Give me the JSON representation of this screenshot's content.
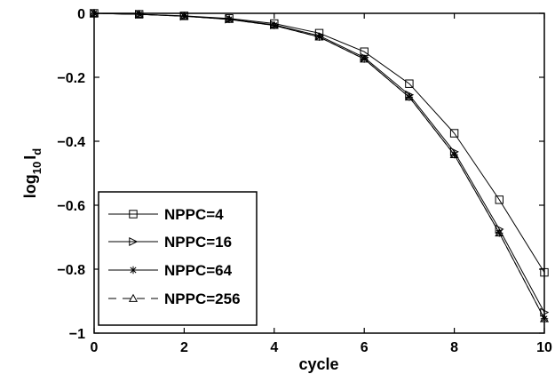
{
  "chart_data": {
    "type": "line",
    "title": "",
    "xlabel": "cycle",
    "ylabel_base": "log",
    "ylabel_sub": "10",
    "ylabel_rest": "I",
    "ylabel_rest_sub": "d",
    "xlim": [
      0,
      10
    ],
    "ylim": [
      -1,
      0
    ],
    "xticks": [
      0,
      2,
      4,
      6,
      8,
      10
    ],
    "xtick_labels": [
      "0",
      "2",
      "4",
      "6",
      "8",
      "10"
    ],
    "yticks": [
      0,
      -0.2,
      -0.4,
      -0.6,
      -0.8,
      -1
    ],
    "ytick_labels": [
      "0",
      "−0.2",
      "−0.4",
      "−0.6",
      "−0.8",
      "−1"
    ],
    "grid": false,
    "legend_position": "lower-left",
    "x": [
      0,
      1,
      2,
      3,
      4,
      5,
      6,
      7,
      8,
      9,
      10
    ],
    "series": [
      {
        "name": "NPPC=4",
        "marker": "square",
        "linestyle": "solid",
        "values": [
          0,
          -0.003,
          -0.008,
          -0.016,
          -0.032,
          -0.062,
          -0.12,
          -0.22,
          -0.375,
          -0.583,
          -0.81
        ]
      },
      {
        "name": "NPPC=16",
        "marker": "triangle-right",
        "linestyle": "solid",
        "values": [
          0,
          -0.003,
          -0.009,
          -0.018,
          -0.036,
          -0.07,
          -0.138,
          -0.255,
          -0.433,
          -0.675,
          -0.935
        ]
      },
      {
        "name": "NPPC=64",
        "marker": "star",
        "linestyle": "solid",
        "values": [
          0,
          -0.003,
          -0.009,
          -0.019,
          -0.038,
          -0.074,
          -0.143,
          -0.262,
          -0.442,
          -0.687,
          -0.955
        ]
      },
      {
        "name": "NPPC=256",
        "marker": "triangle-up",
        "linestyle": "dashed",
        "values": [
          0,
          -0.003,
          -0.009,
          -0.019,
          -0.038,
          -0.074,
          -0.143,
          -0.262,
          -0.442,
          -0.687,
          -0.955
        ]
      }
    ]
  }
}
